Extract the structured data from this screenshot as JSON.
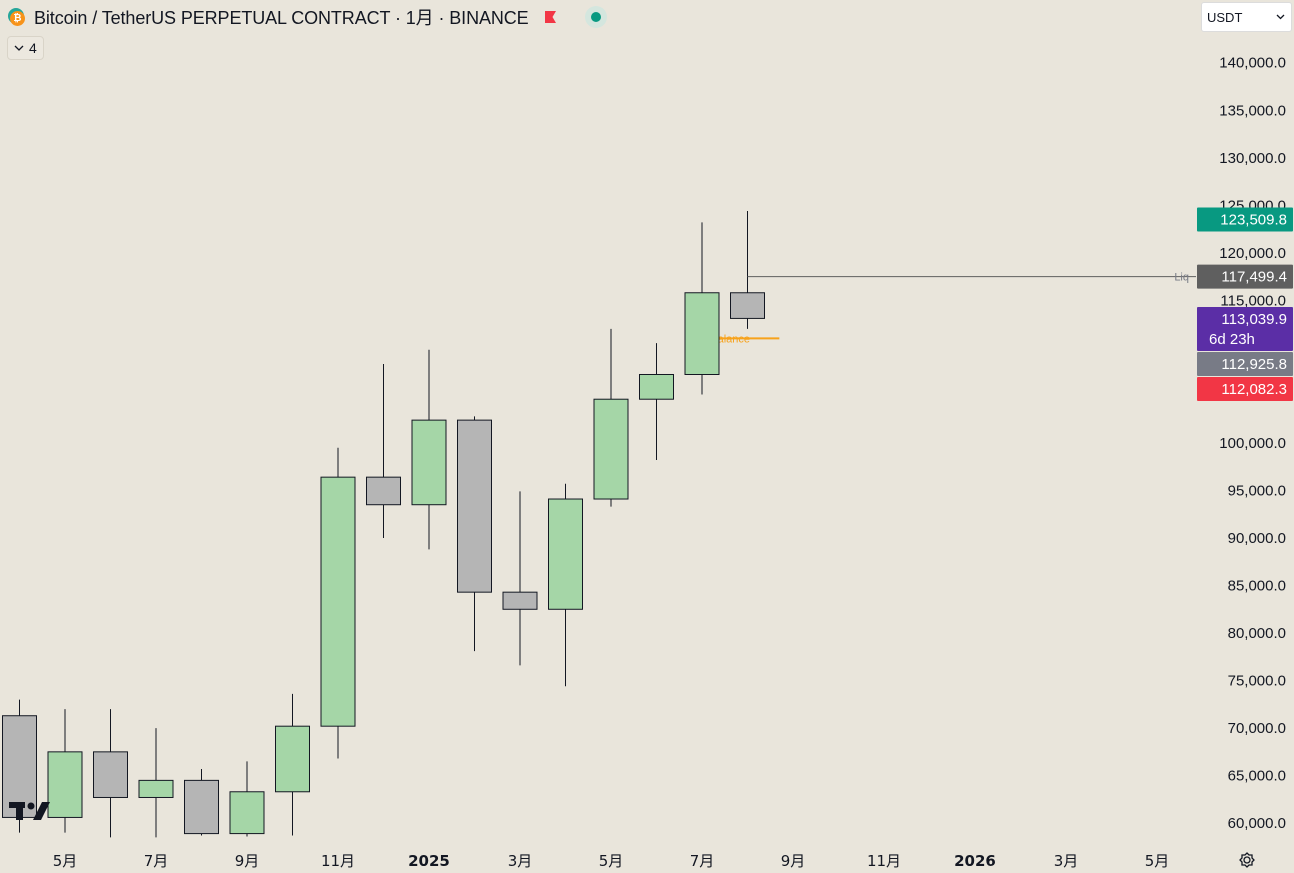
{
  "header": {
    "title": "Bitcoin / TetherUS PERPETUAL CONTRACT · 1月 · BINANCE",
    "symbol_icon": "bitcoin-icon",
    "flag_icon": "flag-icon",
    "flag_color": "#f23645"
  },
  "indicators_toggle": {
    "count": "4"
  },
  "currency_select": {
    "value": "USDT"
  },
  "colors": {
    "background": "#e9e5db",
    "up_candle": "#a5d6a7",
    "down_candle": "#b5b5b5",
    "last_price": "#089981",
    "countdown": "#5b2ea6",
    "liq_label": "#5f5f5f",
    "low_label": "#f23645",
    "grey_label": "#787b86",
    "balance_line": "#f7a21b"
  },
  "chart_data": {
    "type": "candlestick",
    "ylim": [
      57700,
      146600
    ],
    "y_ticks": [
      60000,
      65000,
      70000,
      75000,
      80000,
      85000,
      90000,
      95000,
      100000,
      115000,
      120000,
      125000,
      130000,
      135000,
      140000
    ],
    "y_tick_labels": [
      "60,000.0",
      "65,000.0",
      "70,000.0",
      "75,000.0",
      "80,000.0",
      "85,000.0",
      "90,000.0",
      "95,000.0",
      "100,000.0",
      "115,000.0",
      "120,000.0",
      "125,000.0",
      "130,000.0",
      "135,000.0",
      "140,000.0"
    ],
    "x_labels": [
      "5月",
      "7月",
      "9月",
      "11月",
      "2025",
      "3月",
      "5月",
      "7月",
      "9月",
      "11月",
      "2026",
      "3月",
      "5月"
    ],
    "x_label_bold": [
      false,
      false,
      false,
      false,
      true,
      false,
      false,
      false,
      false,
      false,
      true,
      false,
      false
    ],
    "x_label_month_index": [
      1,
      3,
      5,
      7,
      9,
      11,
      13,
      15,
      17,
      19,
      21,
      23,
      25
    ],
    "candles": [
      {
        "month": "2024-03",
        "open": 71300,
        "high": 73000,
        "low": 59000,
        "close": 60600
      },
      {
        "month": "2024-04",
        "open": 60600,
        "high": 72000,
        "low": 59000,
        "close": 67500
      },
      {
        "month": "2024-05",
        "open": 67500,
        "high": 72000,
        "low": 58500,
        "close": 62700
      },
      {
        "month": "2024-06",
        "open": 62700,
        "high": 70000,
        "low": 58500,
        "close": 64500
      },
      {
        "month": "2024-07",
        "open": 64500,
        "high": 65700,
        "low": 58700,
        "close": 58900
      },
      {
        "month": "2024-08",
        "open": 58900,
        "high": 66500,
        "low": 58600,
        "close": 63300
      },
      {
        "month": "2024-09",
        "open": 63300,
        "high": 73600,
        "low": 58700,
        "close": 70200
      },
      {
        "month": "2024-10",
        "open": 70200,
        "high": 99500,
        "low": 66800,
        "close": 96400
      },
      {
        "month": "2024-11",
        "open": 96400,
        "high": 108300,
        "low": 90000,
        "close": 93500
      },
      {
        "month": "2024-12",
        "open": 93500,
        "high": 109800,
        "low": 88800,
        "close": 102400
      },
      {
        "month": "2025-01",
        "open": 102400,
        "high": 102800,
        "low": 78100,
        "close": 84300
      },
      {
        "month": "2025-02",
        "open": 84300,
        "high": 94900,
        "low": 76600,
        "close": 82500
      },
      {
        "month": "2025-03",
        "open": 82500,
        "high": 95700,
        "low": 74400,
        "close": 94100
      },
      {
        "month": "2025-04",
        "open": 94100,
        "high": 112000,
        "low": 93300,
        "close": 104600
      },
      {
        "month": "2025-05",
        "open": 104600,
        "high": 110500,
        "low": 98200,
        "close": 107200
      },
      {
        "month": "2025-06",
        "open": 107200,
        "high": 123200,
        "low": 105100,
        "close": 115800
      },
      {
        "month": "2025-07",
        "open": 115800,
        "high": 124400,
        "low": 112000,
        "close": 113100
      }
    ],
    "price_labels": [
      {
        "value": 123509.8,
        "text": "123,509.8",
        "color": "#089981"
      },
      {
        "value": 117499.4,
        "text": "117,499.4",
        "color": "#5f5f5f",
        "tag": "Liq"
      },
      {
        "value": 113039.9,
        "text": "113,039.9",
        "sub": "6d 23h",
        "color": "#5b2ea6"
      },
      {
        "value": 112925.8,
        "text": "112,925.8",
        "color": "#787b86"
      },
      {
        "value": 112082.3,
        "text": "112,082.3",
        "color": "#f23645"
      }
    ],
    "liq_line": {
      "value": 117499.4,
      "from_month_index": 16.0
    },
    "balance_line": {
      "value": 111000,
      "from_month_index": 14.85,
      "to_month_index": 16.7,
      "label": "alance",
      "label_month_index": 15.7
    },
    "settings_icon": "gear-icon",
    "logo_icon": "tradingview-logo"
  }
}
